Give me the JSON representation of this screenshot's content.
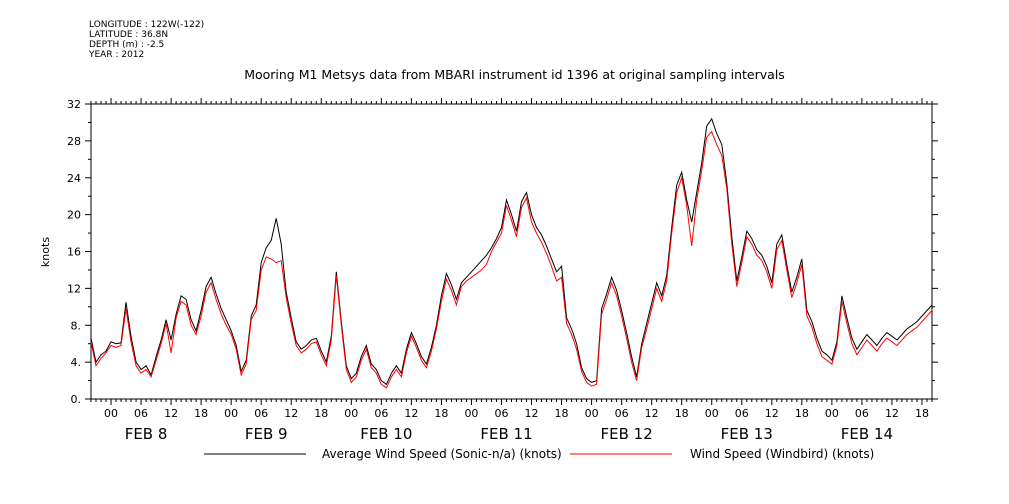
{
  "meta": {
    "longitude": "LONGITUDE : 122W(-122)",
    "latitude": "LATITUDE : 36.8N",
    "depth": "DEPTH (m) : -2.5",
    "year": "YEAR : 2012"
  },
  "chart_data": {
    "type": "line",
    "title": "Mooring M1 Metsys data from MBARI instrument id 1396 at original sampling intervals",
    "xlabel": "",
    "ylabel": "knots",
    "ylim": [
      0,
      32
    ],
    "yticks": [
      "0.",
      "4.",
      "8.",
      "12",
      "16",
      "20",
      "24",
      "28",
      "32"
    ],
    "xlim": [
      "2012-02-07T20:00",
      "2012-02-14T20:00"
    ],
    "hour_ticks": [
      "00",
      "06",
      "12",
      "18",
      "00",
      "06",
      "12",
      "18",
      "00",
      "06",
      "12",
      "18",
      "00",
      "06",
      "12",
      "18",
      "00",
      "06",
      "12",
      "18",
      "00",
      "06",
      "12",
      "18",
      "00",
      "06",
      "12",
      "18"
    ],
    "day_labels": [
      "FEB  8",
      "FEB  9",
      "FEB 10",
      "FEB 11",
      "FEB 12",
      "FEB 13",
      "FEB 14"
    ],
    "grid": false,
    "legend_position": "bottom",
    "series": [
      {
        "name": "Average Wind Speed (Sonic-n/a) (knots)",
        "color": "#000000",
        "x_hours": [
          -4,
          -3,
          -2,
          -1,
          0,
          1,
          2,
          3,
          4,
          5,
          6,
          7,
          8,
          9,
          10,
          11,
          12,
          13,
          14,
          15,
          16,
          17,
          18,
          19,
          20,
          21,
          22,
          23,
          24,
          25,
          26,
          27,
          28,
          29,
          30,
          31,
          32,
          33,
          34,
          35,
          36,
          37,
          38,
          39,
          40,
          41,
          42,
          43,
          44,
          45,
          46,
          47,
          48,
          49,
          50,
          51,
          52,
          53,
          54,
          55,
          56,
          57,
          58,
          59,
          60,
          61,
          62,
          63,
          64,
          65,
          66,
          67,
          68,
          69,
          70,
          71,
          72,
          73,
          74,
          75,
          76,
          77,
          78,
          79,
          80,
          81,
          82,
          83,
          84,
          85,
          86,
          87,
          88,
          89,
          90,
          91,
          92,
          93,
          94,
          95,
          96,
          97,
          98,
          99,
          100,
          101,
          102,
          103,
          104,
          105,
          106,
          107,
          108,
          109,
          110,
          111,
          112,
          113,
          114,
          115,
          116,
          117,
          118,
          119,
          120,
          121,
          122,
          123,
          124,
          125,
          126,
          127,
          128,
          129,
          130,
          131,
          132,
          133,
          134,
          135,
          136,
          137,
          138,
          139,
          140,
          141,
          142,
          143,
          144,
          145,
          146,
          147,
          148,
          149,
          150,
          151,
          152,
          153,
          154,
          155,
          156,
          157,
          158,
          159,
          160,
          161,
          162,
          163,
          164
        ],
        "values": [
          6.6,
          4.0,
          4.8,
          5.2,
          6.2,
          6.0,
          6.1,
          10.5,
          6.8,
          4.0,
          3.2,
          3.6,
          2.6,
          4.6,
          6.4,
          8.6,
          6.4,
          9.2,
          11.2,
          10.8,
          8.6,
          7.4,
          9.6,
          12.2,
          13.2,
          11.4,
          9.8,
          8.6,
          7.4,
          5.8,
          3.0,
          4.2,
          9.0,
          10.2,
          14.8,
          16.4,
          17.2,
          19.6,
          16.8,
          11.6,
          8.8,
          6.2,
          5.4,
          5.8,
          6.4,
          6.6,
          5.2,
          4.0,
          6.8,
          13.8,
          8.4,
          3.6,
          2.2,
          2.8,
          4.6,
          5.8,
          3.8,
          3.2,
          2.0,
          1.6,
          2.8,
          3.6,
          2.8,
          5.4,
          7.2,
          6.0,
          4.6,
          3.8,
          5.6,
          8.0,
          11.2,
          13.6,
          12.4,
          10.8,
          12.6,
          13.2,
          13.8,
          14.4,
          15.0,
          15.6,
          16.4,
          17.4,
          18.6,
          21.6,
          20.0,
          18.2,
          21.4,
          22.4,
          20.0,
          18.6,
          17.8,
          16.6,
          15.2,
          13.8,
          14.4,
          8.8,
          7.6,
          6.0,
          3.4,
          2.2,
          1.8,
          2.0,
          9.8,
          11.4,
          13.2,
          11.8,
          9.6,
          7.2,
          4.6,
          2.4,
          6.0,
          8.2,
          10.4,
          12.6,
          11.2,
          13.4,
          18.6,
          23.2,
          24.6,
          21.6,
          19.2,
          22.4,
          25.6,
          29.6,
          30.4,
          28.8,
          27.6,
          23.4,
          17.6,
          12.8,
          15.4,
          18.2,
          17.4,
          16.2,
          15.6,
          14.4,
          12.6,
          16.8,
          17.8,
          14.6,
          11.6,
          13.2,
          15.2,
          9.6,
          8.4,
          6.6,
          5.2,
          4.8,
          4.2,
          6.2,
          11.2,
          8.8,
          6.6,
          5.4,
          6.2,
          7.0,
          6.4,
          5.8,
          6.6,
          7.2,
          6.8,
          6.4,
          7.0,
          7.6,
          8.0,
          8.4,
          9.0,
          9.6,
          10.2
        ]
      },
      {
        "name": "Wind Speed (Windbird) (knots)",
        "color": "#ff0000",
        "x_hours": [
          -4,
          -3,
          -2,
          -1,
          0,
          1,
          2,
          3,
          4,
          5,
          6,
          7,
          8,
          9,
          10,
          11,
          12,
          13,
          14,
          15,
          16,
          17,
          18,
          19,
          20,
          21,
          22,
          23,
          24,
          25,
          26,
          27,
          28,
          29,
          30,
          31,
          32,
          33,
          34,
          35,
          36,
          37,
          38,
          39,
          40,
          41,
          42,
          43,
          44,
          45,
          46,
          47,
          48,
          49,
          50,
          51,
          52,
          53,
          54,
          55,
          56,
          57,
          58,
          59,
          60,
          61,
          62,
          63,
          64,
          65,
          66,
          67,
          68,
          69,
          70,
          71,
          72,
          73,
          74,
          75,
          76,
          77,
          78,
          79,
          80,
          81,
          82,
          83,
          84,
          85,
          86,
          87,
          88,
          89,
          90,
          91,
          92,
          93,
          94,
          95,
          96,
          97,
          98,
          99,
          100,
          101,
          102,
          103,
          104,
          105,
          106,
          107,
          108,
          109,
          110,
          111,
          112,
          113,
          114,
          115,
          116,
          117,
          118,
          119,
          120,
          121,
          122,
          123,
          124,
          125,
          126,
          127,
          128,
          129,
          130,
          131,
          132,
          133,
          134,
          135,
          136,
          137,
          138,
          139,
          140,
          141,
          142,
          143,
          144,
          145,
          146,
          147,
          148,
          149,
          150,
          151,
          152,
          153,
          154,
          155,
          156,
          157,
          158,
          159,
          160,
          161,
          162,
          163,
          164
        ],
        "values": [
          6.2,
          3.6,
          4.4,
          5.0,
          5.8,
          5.6,
          5.8,
          9.8,
          6.2,
          3.6,
          2.8,
          3.2,
          2.4,
          4.2,
          6.0,
          8.2,
          5.0,
          8.8,
          10.6,
          10.2,
          8.0,
          7.0,
          9.0,
          11.6,
          12.6,
          10.8,
          9.2,
          8.0,
          7.0,
          5.4,
          2.6,
          3.8,
          8.6,
          9.6,
          14.0,
          15.4,
          15.2,
          14.8,
          15.0,
          11.0,
          8.2,
          5.8,
          5.0,
          5.4,
          6.0,
          6.2,
          4.8,
          3.6,
          6.4,
          13.4,
          8.0,
          3.2,
          1.8,
          2.4,
          4.2,
          5.4,
          3.4,
          2.8,
          1.6,
          1.2,
          2.4,
          3.2,
          2.4,
          5.0,
          6.8,
          5.6,
          4.2,
          3.4,
          5.2,
          7.6,
          10.6,
          13.0,
          11.8,
          10.2,
          12.2,
          12.8,
          13.2,
          13.6,
          14.0,
          14.6,
          16.0,
          17.0,
          18.0,
          21.0,
          19.4,
          17.6,
          20.8,
          21.8,
          19.2,
          18.0,
          17.0,
          15.8,
          14.4,
          12.8,
          13.2,
          8.2,
          7.0,
          5.4,
          3.0,
          1.8,
          1.4,
          1.6,
          9.2,
          10.8,
          12.6,
          11.2,
          9.0,
          6.6,
          4.0,
          2.0,
          5.6,
          7.6,
          9.8,
          12.0,
          10.6,
          12.8,
          18.0,
          22.4,
          24.0,
          21.0,
          16.6,
          21.6,
          24.8,
          28.4,
          29.0,
          27.6,
          26.4,
          22.8,
          16.8,
          12.2,
          14.8,
          17.6,
          16.8,
          15.6,
          15.0,
          13.8,
          12.0,
          16.2,
          17.2,
          14.0,
          11.0,
          12.6,
          14.6,
          9.0,
          7.8,
          6.0,
          4.6,
          4.2,
          3.8,
          5.8,
          10.6,
          8.2,
          6.0,
          4.8,
          5.6,
          6.4,
          5.8,
          5.2,
          6.0,
          6.6,
          6.2,
          5.8,
          6.4,
          7.0,
          7.4,
          7.8,
          8.4,
          9.0,
          9.6
        ]
      }
    ]
  }
}
